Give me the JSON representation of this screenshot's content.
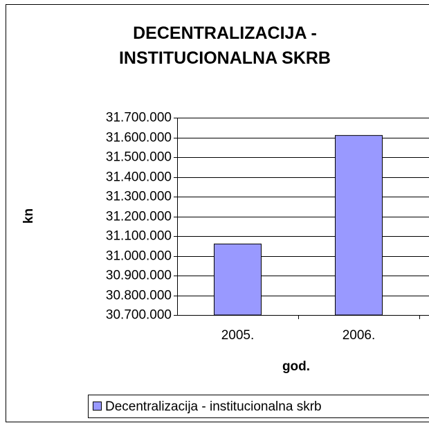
{
  "chart_data": {
    "type": "bar",
    "title": "DECENTRALIZACIJA - INSTITUCIONALNA SKRB",
    "x_label": "god.",
    "y_label": "kn",
    "categories": [
      "2005.",
      "2006."
    ],
    "series": [
      {
        "name": "Decentralizacija - institucionalna skrb",
        "color": "#9999ff",
        "values": [
          31060000,
          31610000
        ]
      }
    ],
    "ylim": [
      30700000,
      31700000
    ],
    "yticks": [
      {
        "value": 30700000,
        "label": "30.700.000"
      },
      {
        "value": 30800000,
        "label": "30.800.000"
      },
      {
        "value": 30900000,
        "label": "30.900.000"
      },
      {
        "value": 31000000,
        "label": "31.000.000"
      },
      {
        "value": 31100000,
        "label": "31.100.000"
      },
      {
        "value": 31200000,
        "label": "31.200.000"
      },
      {
        "value": 31300000,
        "label": "31.300.000"
      },
      {
        "value": 31400000,
        "label": "31.400.000"
      },
      {
        "value": 31500000,
        "label": "31.500.000"
      },
      {
        "value": 31600000,
        "label": "31.600.000"
      },
      {
        "value": 31700000,
        "label": "31.700.000"
      }
    ],
    "grid": true,
    "legend": "bottom"
  }
}
